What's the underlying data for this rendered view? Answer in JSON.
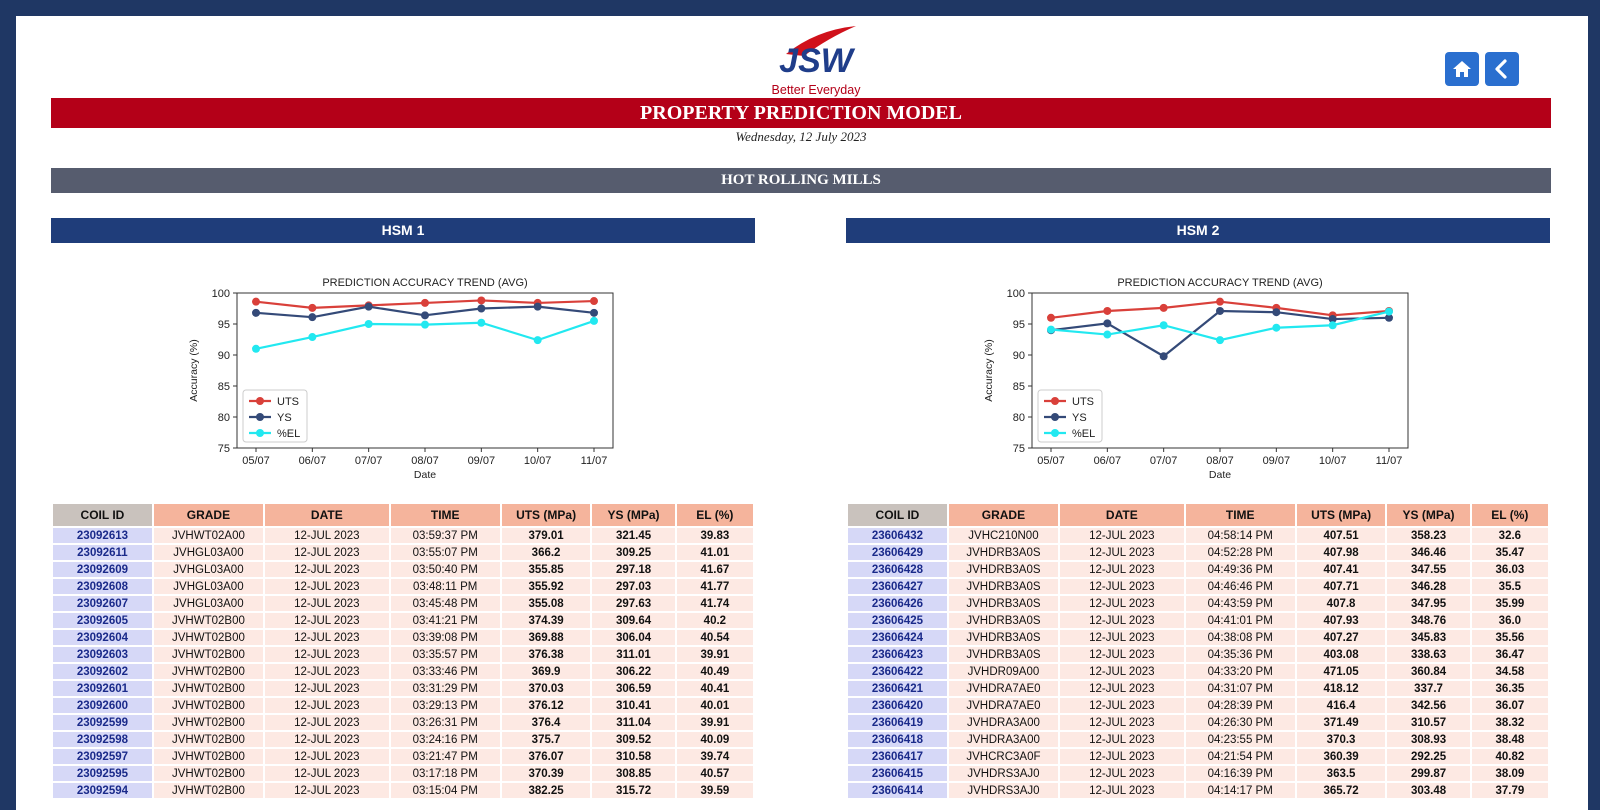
{
  "header": {
    "logo_text": "JSW",
    "tagline": "Better Everyday",
    "title": "PROPERTY PREDICTION MODEL",
    "date": "Wednesday, 12 July 2023",
    "section": "HOT ROLLING MILLS",
    "brand_colors": {
      "red": "#b40018",
      "navy": "#1f3d7a"
    }
  },
  "nav": {
    "home_icon": "home-icon",
    "back_icon": "chevron-left-icon"
  },
  "columns": [
    "COIL ID",
    "GRADE",
    "DATE",
    "TIME",
    "UTS (MPa)",
    "YS (MPa)",
    "EL (%)"
  ],
  "panels": [
    {
      "title": "HSM 1",
      "rows": [
        [
          "23092613",
          "JVHWT02A00",
          "12-JUL 2023",
          "03:59:37 PM",
          "379.01",
          "321.45",
          "39.83"
        ],
        [
          "23092611",
          "JVHGL03A00",
          "12-JUL 2023",
          "03:55:07 PM",
          "366.2",
          "309.25",
          "41.01"
        ],
        [
          "23092609",
          "JVHGL03A00",
          "12-JUL 2023",
          "03:50:40 PM",
          "355.85",
          "297.18",
          "41.67"
        ],
        [
          "23092608",
          "JVHGL03A00",
          "12-JUL 2023",
          "03:48:11 PM",
          "355.92",
          "297.03",
          "41.77"
        ],
        [
          "23092607",
          "JVHGL03A00",
          "12-JUL 2023",
          "03:45:48 PM",
          "355.08",
          "297.63",
          "41.74"
        ],
        [
          "23092605",
          "JVHWT02B00",
          "12-JUL 2023",
          "03:41:21 PM",
          "374.39",
          "309.64",
          "40.2"
        ],
        [
          "23092604",
          "JVHWT02B00",
          "12-JUL 2023",
          "03:39:08 PM",
          "369.88",
          "306.04",
          "40.54"
        ],
        [
          "23092603",
          "JVHWT02B00",
          "12-JUL 2023",
          "03:35:57 PM",
          "376.38",
          "311.01",
          "39.91"
        ],
        [
          "23092602",
          "JVHWT02B00",
          "12-JUL 2023",
          "03:33:46 PM",
          "369.9",
          "306.22",
          "40.49"
        ],
        [
          "23092601",
          "JVHWT02B00",
          "12-JUL 2023",
          "03:31:29 PM",
          "370.03",
          "306.59",
          "40.41"
        ],
        [
          "23092600",
          "JVHWT02B00",
          "12-JUL 2023",
          "03:29:13 PM",
          "376.12",
          "310.41",
          "40.01"
        ],
        [
          "23092599",
          "JVHWT02B00",
          "12-JUL 2023",
          "03:26:31 PM",
          "376.4",
          "311.04",
          "39.91"
        ],
        [
          "23092598",
          "JVHWT02B00",
          "12-JUL 2023",
          "03:24:16 PM",
          "375.7",
          "309.52",
          "40.09"
        ],
        [
          "23092597",
          "JVHWT02B00",
          "12-JUL 2023",
          "03:21:47 PM",
          "376.07",
          "310.58",
          "39.74"
        ],
        [
          "23092595",
          "JVHWT02B00",
          "12-JUL 2023",
          "03:17:18 PM",
          "370.39",
          "308.85",
          "40.57"
        ],
        [
          "23092594",
          "JVHWT02B00",
          "12-JUL 2023",
          "03:15:04 PM",
          "382.25",
          "315.72",
          "39.59"
        ]
      ]
    },
    {
      "title": "HSM 2",
      "rows": [
        [
          "23606432",
          "JVHC210N00",
          "12-JUL 2023",
          "04:58:14 PM",
          "407.51",
          "358.23",
          "32.6"
        ],
        [
          "23606429",
          "JVHDRB3A0S",
          "12-JUL 2023",
          "04:52:28 PM",
          "407.98",
          "346.46",
          "35.47"
        ],
        [
          "23606428",
          "JVHDRB3A0S",
          "12-JUL 2023",
          "04:49:36 PM",
          "407.41",
          "347.55",
          "36.03"
        ],
        [
          "23606427",
          "JVHDRB3A0S",
          "12-JUL 2023",
          "04:46:46 PM",
          "407.71",
          "346.28",
          "35.5"
        ],
        [
          "23606426",
          "JVHDRB3A0S",
          "12-JUL 2023",
          "04:43:59 PM",
          "407.8",
          "347.95",
          "35.99"
        ],
        [
          "23606425",
          "JVHDRB3A0S",
          "12-JUL 2023",
          "04:41:01 PM",
          "407.93",
          "348.76",
          "36.0"
        ],
        [
          "23606424",
          "JVHDRB3A0S",
          "12-JUL 2023",
          "04:38:08 PM",
          "407.27",
          "345.83",
          "35.56"
        ],
        [
          "23606423",
          "JVHDRB3A0S",
          "12-JUL 2023",
          "04:35:36 PM",
          "403.08",
          "338.63",
          "36.47"
        ],
        [
          "23606422",
          "JVHDR09A00",
          "12-JUL 2023",
          "04:33:20 PM",
          "471.05",
          "360.84",
          "34.58"
        ],
        [
          "23606421",
          "JVHDRA7AE0",
          "12-JUL 2023",
          "04:31:07 PM",
          "418.12",
          "337.7",
          "36.35"
        ],
        [
          "23606420",
          "JVHDRA7AE0",
          "12-JUL 2023",
          "04:28:39 PM",
          "416.4",
          "342.56",
          "36.07"
        ],
        [
          "23606419",
          "JVHDRA3A00",
          "12-JUL 2023",
          "04:26:30 PM",
          "371.49",
          "310.57",
          "38.32"
        ],
        [
          "23606418",
          "JVHDRA3A00",
          "12-JUL 2023",
          "04:23:55 PM",
          "370.3",
          "308.93",
          "38.48"
        ],
        [
          "23606417",
          "JVHCRC3A0F",
          "12-JUL 2023",
          "04:21:54 PM",
          "360.39",
          "292.25",
          "40.82"
        ],
        [
          "23606415",
          "JVHDRS3AJ0",
          "12-JUL 2023",
          "04:16:39 PM",
          "363.5",
          "299.87",
          "38.09"
        ],
        [
          "23606414",
          "JVHDRS3AJ0",
          "12-JUL 2023",
          "04:14:17 PM",
          "365.72",
          "303.48",
          "37.79"
        ]
      ]
    }
  ],
  "chart_data": [
    {
      "type": "line",
      "title": "PREDICTION ACCURACY TREND (AVG)",
      "xlabel": "Date",
      "ylabel": "Accuracy (%)",
      "ylim": [
        75,
        100
      ],
      "yticks": [
        75,
        80,
        85,
        90,
        95,
        100
      ],
      "grid": false,
      "legend": "bottom-left",
      "x": [
        "05/07",
        "06/07",
        "07/07",
        "08/07",
        "09/07",
        "10/07",
        "11/07"
      ],
      "series": [
        {
          "name": "UTS",
          "color": "#d9403a",
          "values": [
            98.6,
            97.6,
            98.0,
            98.4,
            98.8,
            98.4,
            98.7
          ]
        },
        {
          "name": "YS",
          "color": "#344a78",
          "values": [
            96.8,
            96.1,
            97.8,
            96.4,
            97.5,
            97.8,
            96.8
          ]
        },
        {
          "name": "%EL",
          "color": "#22e8f0",
          "values": [
            91.0,
            92.9,
            95.0,
            94.9,
            95.2,
            92.4,
            95.5
          ]
        }
      ]
    },
    {
      "type": "line",
      "title": "PREDICTION ACCURACY TREND (AVG)",
      "xlabel": "Date",
      "ylabel": "Accuracy (%)",
      "ylim": [
        75,
        100
      ],
      "yticks": [
        75,
        80,
        85,
        90,
        95,
        100
      ],
      "grid": false,
      "legend": "bottom-left",
      "x": [
        "05/07",
        "06/07",
        "07/07",
        "08/07",
        "09/07",
        "10/07",
        "11/07"
      ],
      "series": [
        {
          "name": "UTS",
          "color": "#d9403a",
          "values": [
            96.0,
            97.1,
            97.6,
            98.6,
            97.6,
            96.4,
            97.1
          ]
        },
        {
          "name": "YS",
          "color": "#344a78",
          "values": [
            94.0,
            95.1,
            89.8,
            97.1,
            96.9,
            95.8,
            96.0
          ]
        },
        {
          "name": "%EL",
          "color": "#22e8f0",
          "values": [
            94.1,
            93.3,
            94.8,
            92.4,
            94.4,
            94.8,
            97.0
          ]
        }
      ]
    }
  ]
}
